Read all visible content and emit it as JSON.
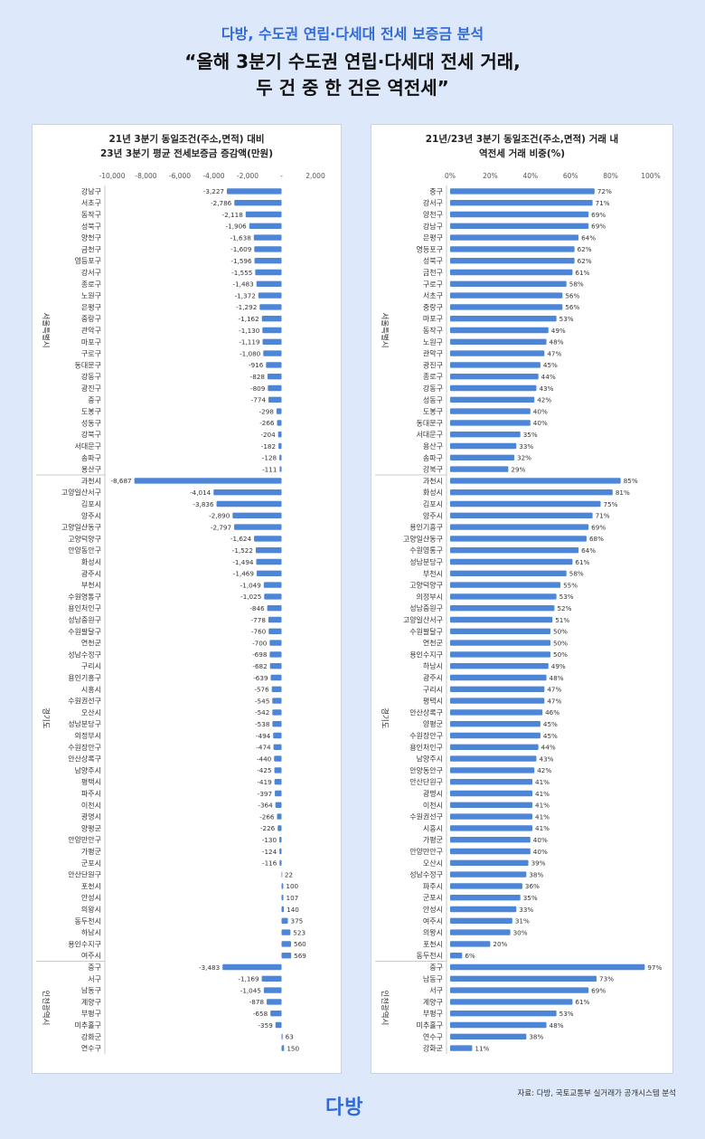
{
  "header": {
    "subtitle": "다방, 수도권 연립·다세대 전세 보증금 분석",
    "title_line1": "“올해 3분기 수도권 연립·다세대 전세 거래,",
    "title_line2": "두 건 중 한 건은 역전세”"
  },
  "footer": {
    "source": "자료: 다방, 국토교통부 실거래가 공개시스템 분석",
    "logo": "다방"
  },
  "colors": {
    "bar": "#4d86d6",
    "accent": "#2f6ad8",
    "background": "#dde9fa"
  },
  "chart_data": [
    {
      "type": "bar",
      "orientation": "horizontal",
      "title_line1": "21년 3분기 동일조건(주소,면적) 대비",
      "title_line2": "23년 3분기 평균 전세보증금 증감액(만원)",
      "xlim": [
        -10000,
        2000
      ],
      "xticks": [
        "-10,000",
        "-8,000",
        "-6,000",
        "-4,000",
        "-2,000",
        "-",
        "2,000"
      ],
      "groups": [
        {
          "name": "서울특별시",
          "categories": [
            "강남구",
            "서초구",
            "동작구",
            "성북구",
            "양천구",
            "금천구",
            "영등포구",
            "강서구",
            "종로구",
            "노원구",
            "은평구",
            "중랑구",
            "관악구",
            "마포구",
            "구로구",
            "동대문구",
            "강동구",
            "광진구",
            "중구",
            "도봉구",
            "성동구",
            "강북구",
            "서대문구",
            "송파구",
            "용산구"
          ],
          "values": [
            -3227,
            -2786,
            -2118,
            -1906,
            -1638,
            -1609,
            -1596,
            -1555,
            -1483,
            -1372,
            -1292,
            -1162,
            -1130,
            -1119,
            -1080,
            -916,
            -828,
            -809,
            -774,
            -298,
            -266,
            -204,
            -182,
            -128,
            -111
          ],
          "labels": [
            "-3,227",
            "-2,786",
            "-2,118",
            "-1,906",
            "-1,638",
            "-1,609",
            "-1,596",
            "-1,555",
            "-1,483",
            "-1,372",
            "-1,292",
            "-1,162",
            "-1,130",
            "-1,119",
            "-1,080",
            "-916",
            "-828",
            "-809",
            "-774",
            "-298",
            "-266",
            "-204",
            "-182",
            "-128",
            "-111"
          ]
        },
        {
          "name": "경기도",
          "categories": [
            "과천시",
            "고양일산서구",
            "김포시",
            "양주시",
            "고양일산동구",
            "고양덕양구",
            "안양동안구",
            "화성시",
            "광주시",
            "부천시",
            "수원영통구",
            "용인처인구",
            "성남중원구",
            "수원팔달구",
            "연천군",
            "성남수정구",
            "구리시",
            "용인기흥구",
            "시흥시",
            "수원권선구",
            "오산시",
            "성남분당구",
            "의정부시",
            "수원장안구",
            "안산상록구",
            "남양주시",
            "평택시",
            "파주시",
            "이천시",
            "광명시",
            "양평군",
            "안양만안구",
            "가평군",
            "군포시",
            "안산단원구",
            "포천시",
            "안성시",
            "의왕시",
            "동두천시",
            "하남시",
            "용인수지구",
            "여주시"
          ],
          "values": [
            -8687,
            -4014,
            -3836,
            -2890,
            -2797,
            -1624,
            -1522,
            -1494,
            -1469,
            -1049,
            -1025,
            -846,
            -778,
            -760,
            -700,
            -698,
            -682,
            -639,
            -576,
            -545,
            -542,
            -538,
            -494,
            -474,
            -440,
            -425,
            -419,
            -397,
            -364,
            -266,
            -226,
            -130,
            -124,
            -116,
            22,
            100,
            107,
            140,
            375,
            523,
            560,
            569
          ],
          "labels": [
            "-8,687",
            "-4,014",
            "-3,836",
            "-2,890",
            "-2,797",
            "-1,624",
            "-1,522",
            "-1,494",
            "-1,469",
            "-1,049",
            "-1,025",
            "-846",
            "-778",
            "-760",
            "-700",
            "-698",
            "-682",
            "-639",
            "-576",
            "-545",
            "-542",
            "-538",
            "-494",
            "-474",
            "-440",
            "-425",
            "-419",
            "-397",
            "-364",
            "-266",
            "-226",
            "-130",
            "-124",
            "-116",
            "22",
            "100",
            "107",
            "140",
            "375",
            "523",
            "560",
            "569"
          ]
        },
        {
          "name": "인천광역시",
          "categories": [
            "중구",
            "서구",
            "남동구",
            "계양구",
            "부평구",
            "미추홀구",
            "강화군",
            "연수구"
          ],
          "values": [
            -3483,
            -1169,
            -1045,
            -878,
            -658,
            -359,
            63,
            150
          ],
          "labels": [
            "-3,483",
            "-1,169",
            "-1,045",
            "-878",
            "-658",
            "-359",
            "63",
            "150"
          ]
        }
      ]
    },
    {
      "type": "bar",
      "orientation": "horizontal",
      "title_line1": "21년/23년 3분기 동일조건(주소,면적) 거래 내",
      "title_line2": "역전세 거래 비중(%)",
      "xlim": [
        0,
        100
      ],
      "xticks": [
        "0%",
        "20%",
        "40%",
        "60%",
        "80%",
        "100%"
      ],
      "groups": [
        {
          "name": "서울특별시",
          "categories": [
            "중구",
            "강서구",
            "양천구",
            "강남구",
            "은평구",
            "영등포구",
            "성북구",
            "금천구",
            "구로구",
            "서초구",
            "중랑구",
            "마포구",
            "동작구",
            "노원구",
            "관악구",
            "광진구",
            "종로구",
            "강동구",
            "성동구",
            "도봉구",
            "동대문구",
            "서대문구",
            "용산구",
            "송파구",
            "강북구"
          ],
          "values": [
            72,
            71,
            69,
            69,
            64,
            62,
            62,
            61,
            58,
            56,
            56,
            53,
            49,
            48,
            47,
            45,
            44,
            43,
            42,
            40,
            40,
            35,
            33,
            32,
            29
          ],
          "labels": [
            "72%",
            "71%",
            "69%",
            "69%",
            "64%",
            "62%",
            "62%",
            "61%",
            "58%",
            "56%",
            "56%",
            "53%",
            "49%",
            "48%",
            "47%",
            "45%",
            "44%",
            "43%",
            "42%",
            "40%",
            "40%",
            "35%",
            "33%",
            "32%",
            "29%"
          ]
        },
        {
          "name": "경기도",
          "categories": [
            "과천시",
            "화성시",
            "김포시",
            "양주시",
            "용인기흥구",
            "고양일산동구",
            "수원영통구",
            "성남분당구",
            "부천시",
            "고양덕양구",
            "의정부시",
            "성남중원구",
            "고양일산서구",
            "수원팔달구",
            "연천군",
            "용인수지구",
            "하남시",
            "광주시",
            "구리시",
            "평택시",
            "안산상록구",
            "양평군",
            "수원장안구",
            "용인처인구",
            "남양주시",
            "안양동안구",
            "안산단원구",
            "광명시",
            "이천시",
            "수원권선구",
            "시흥시",
            "가평군",
            "안양만안구",
            "오산시",
            "성남수정구",
            "파주시",
            "군포시",
            "안성시",
            "여주시",
            "의왕시",
            "포천시",
            "동두천시"
          ],
          "values": [
            85,
            81,
            75,
            71,
            69,
            68,
            64,
            61,
            58,
            55,
            53,
            52,
            51,
            50,
            50,
            50,
            49,
            48,
            47,
            47,
            46,
            45,
            45,
            44,
            43,
            42,
            41,
            41,
            41,
            41,
            41,
            40,
            40,
            39,
            38,
            36,
            35,
            33,
            31,
            30,
            20,
            6
          ],
          "labels": [
            "85%",
            "81%",
            "75%",
            "71%",
            "69%",
            "68%",
            "64%",
            "61%",
            "58%",
            "55%",
            "53%",
            "52%",
            "51%",
            "50%",
            "50%",
            "50%",
            "49%",
            "48%",
            "47%",
            "47%",
            "46%",
            "45%",
            "45%",
            "44%",
            "43%",
            "42%",
            "41%",
            "41%",
            "41%",
            "41%",
            "41%",
            "40%",
            "40%",
            "39%",
            "38%",
            "36%",
            "35%",
            "33%",
            "31%",
            "30%",
            "20%",
            "6%"
          ]
        },
        {
          "name": "인천광역시",
          "categories": [
            "중구",
            "남동구",
            "서구",
            "계양구",
            "부평구",
            "미추홀구",
            "연수구",
            "강화군"
          ],
          "values": [
            97,
            73,
            69,
            61,
            53,
            48,
            38,
            11
          ],
          "labels": [
            "97%",
            "73%",
            "69%",
            "61%",
            "53%",
            "48%",
            "38%",
            "11%"
          ]
        }
      ]
    }
  ]
}
